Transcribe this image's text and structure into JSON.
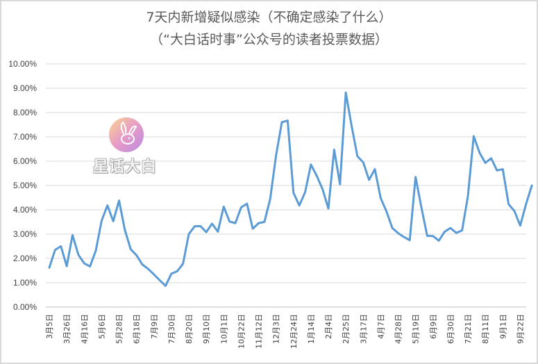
{
  "chart_data": {
    "type": "line",
    "title": "7天内新增疑似感染（不确定感染了什么）",
    "subtitle": "（“大白话时事”公众号的读者投票数据）",
    "xlabel": "",
    "ylabel": "",
    "ylim": [
      0,
      0.1
    ],
    "yticks": [
      "0.00%",
      "1.00%",
      "2.00%",
      "3.00%",
      "4.00%",
      "5.00%",
      "6.00%",
      "7.00%",
      "8.00%",
      "9.00%",
      "10.00%"
    ],
    "grid": true,
    "legend": "none",
    "line_color": "#5b9bd5",
    "tick_labels": [
      "3月5日",
      "3月26日",
      "4月16日",
      "5月6日",
      "5月28日",
      "6月18日",
      "7月9日",
      "7月30日",
      "8月20日",
      "9月10日",
      "10月1日",
      "10月22日",
      "11月12日",
      "12月3日",
      "12月24日",
      "1月14日",
      "2月4日",
      "2月25日",
      "3月17日",
      "4月7日",
      "4月28日",
      "5月19日",
      "6月9日",
      "6月30日",
      "7月21日",
      "8月11日",
      "9月1日",
      "9月22日"
    ],
    "values": [
      0.0162,
      0.0235,
      0.025,
      0.0168,
      0.0296,
      0.0215,
      0.018,
      0.0167,
      0.0232,
      0.0355,
      0.0418,
      0.0353,
      0.0438,
      0.0317,
      0.0238,
      0.0213,
      0.0175,
      0.0157,
      0.0134,
      0.011,
      0.0087,
      0.0137,
      0.0147,
      0.0178,
      0.03,
      0.0332,
      0.0333,
      0.0308,
      0.0343,
      0.031,
      0.0413,
      0.0352,
      0.0345,
      0.041,
      0.0425,
      0.0322,
      0.0345,
      0.035,
      0.0445,
      0.0623,
      0.076,
      0.0767,
      0.047,
      0.0418,
      0.0472,
      0.0586,
      0.054,
      0.0485,
      0.0405,
      0.0647,
      0.0505,
      0.0882,
      0.0745,
      0.062,
      0.0595,
      0.0523,
      0.0567,
      0.0448,
      0.0393,
      0.0325,
      0.0304,
      0.0288,
      0.0275,
      0.0535,
      0.041,
      0.0293,
      0.0292,
      0.0273,
      0.031,
      0.0325,
      0.0305,
      0.0315,
      0.0455,
      0.0703,
      0.0635,
      0.0593,
      0.0612,
      0.0562,
      0.0567,
      0.0423,
      0.0395,
      0.0335,
      0.0423,
      0.05
    ]
  },
  "watermark": {
    "text": "星话大白",
    "icon": "rabbit-logo-icon",
    "gradient": [
      "#f9d58a",
      "#e79bc8",
      "#b98be0"
    ]
  }
}
